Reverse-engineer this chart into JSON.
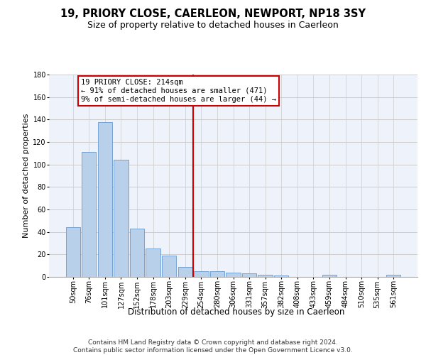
{
  "title": "19, PRIORY CLOSE, CAERLEON, NEWPORT, NP18 3SY",
  "subtitle": "Size of property relative to detached houses in Caerleon",
  "xlabel": "Distribution of detached houses by size in Caerleon",
  "ylabel": "Number of detached properties",
  "categories": [
    "50sqm",
    "76sqm",
    "101sqm",
    "127sqm",
    "152sqm",
    "178sqm",
    "203sqm",
    "229sqm",
    "254sqm",
    "280sqm",
    "306sqm",
    "331sqm",
    "357sqm",
    "382sqm",
    "408sqm",
    "433sqm",
    "459sqm",
    "484sqm",
    "510sqm",
    "535sqm",
    "561sqm"
  ],
  "values": [
    44,
    111,
    138,
    104,
    43,
    25,
    19,
    9,
    5,
    5,
    4,
    3,
    2,
    1,
    0,
    0,
    2,
    0,
    0,
    0,
    2
  ],
  "bar_color": "#b8d0ea",
  "bar_edgecolor": "#6699cc",
  "background_color": "#eef2fa",
  "grid_color": "#cccccc",
  "vline_x": 7.5,
  "vline_color": "#cc0000",
  "annotation_text": "19 PRIORY CLOSE: 214sqm\n← 91% of detached houses are smaller (471)\n9% of semi-detached houses are larger (44) →",
  "annotation_box_color": "#cc0000",
  "ylim": [
    0,
    180
  ],
  "yticks": [
    0,
    20,
    40,
    60,
    80,
    100,
    120,
    140,
    160,
    180
  ],
  "footer_text": "Contains HM Land Registry data © Crown copyright and database right 2024.\nContains public sector information licensed under the Open Government Licence v3.0.",
  "title_fontsize": 10.5,
  "subtitle_fontsize": 9,
  "xlabel_fontsize": 8.5,
  "ylabel_fontsize": 8,
  "tick_fontsize": 7,
  "annotation_fontsize": 7.5,
  "footer_fontsize": 6.5
}
